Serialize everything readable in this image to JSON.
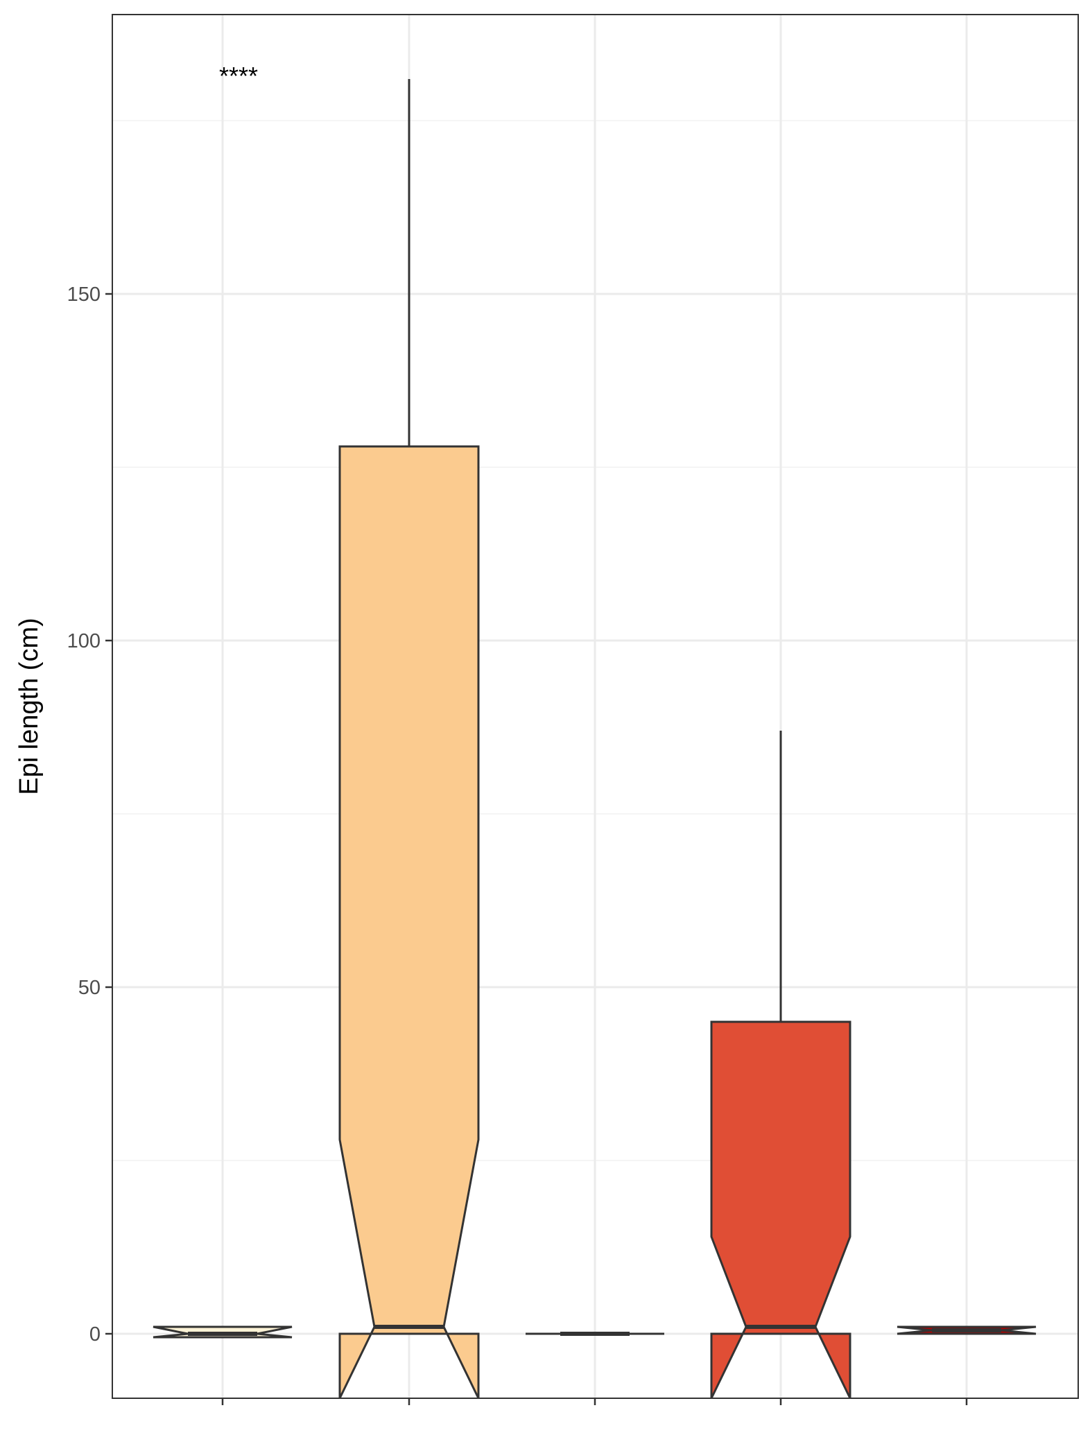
{
  "chart_data": {
    "type": "boxplot",
    "title": "",
    "xlabel": "",
    "ylabel": "Epi length (cm)",
    "ylim": [
      -9,
      190
    ],
    "y_ticks": [
      0,
      50,
      100,
      150
    ],
    "y_tick_labels": [
      "0",
      "50",
      "100",
      "150"
    ],
    "grid": true,
    "notched": true,
    "annotation": "****",
    "boxes": [
      {
        "fill": "#fdf3d6",
        "min": -0.5,
        "q1": -0.5,
        "median": 0,
        "q3": 1,
        "max": 1,
        "notch_low": -0.5,
        "notch_high": 1
      },
      {
        "fill": "#fbcb8f",
        "min": 0,
        "q1": 0,
        "median": 1,
        "q3": 128,
        "max": 181,
        "notch_low": -26,
        "notch_high": 28
      },
      {
        "fill": "#fdc48b",
        "min": 0,
        "q1": 0,
        "median": 0,
        "q3": 0,
        "max": 0,
        "notch_low": 0,
        "notch_high": 0
      },
      {
        "fill": "#e04e35",
        "min": 0,
        "q1": 0,
        "median": 1,
        "q3": 45,
        "max": 87,
        "notch_low": -12,
        "notch_high": 14
      },
      {
        "fill": "#b30000",
        "min": 0,
        "q1": 0,
        "median": 0.5,
        "q3": 1,
        "max": 1,
        "notch_low": 0,
        "notch_high": 1
      }
    ]
  }
}
